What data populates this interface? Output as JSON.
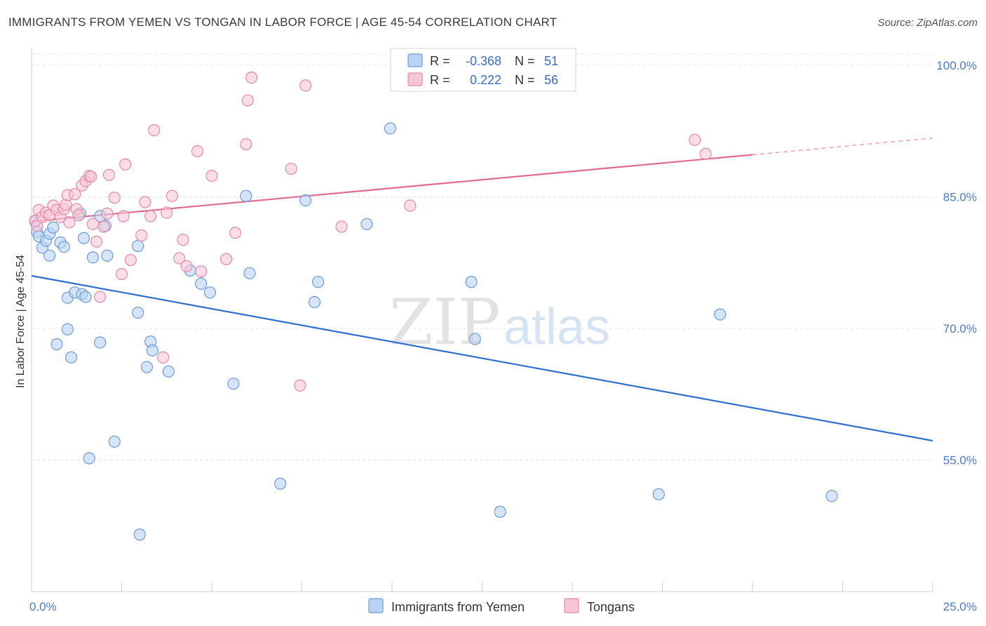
{
  "title": "IMMIGRANTS FROM YEMEN VS TONGAN IN LABOR FORCE | AGE 45-54 CORRELATION CHART",
  "source": "Source: ZipAtlas.com",
  "watermark": {
    "zip": "ZIP",
    "atlas": "atlas"
  },
  "colors": {
    "blue_fill": "#b9d3f2",
    "blue_stroke": "#6f9bd8",
    "blue_line": "#2f6fcf",
    "pink_fill": "#f7c6d6",
    "pink_stroke": "#e48aa8",
    "pink_line": "#e06a93",
    "grid": "#e3e3e3",
    "axis_text": "#4a7cc7"
  },
  "legend": {
    "rows": [
      {
        "r_label": "R =",
        "r_value": "-0.368",
        "n_label": "N =",
        "n_value": "51"
      },
      {
        "r_label": "R =",
        "r_value": "0.222",
        "n_label": "N =",
        "n_value": "56"
      }
    ]
  },
  "chart_data": {
    "type": "scatter",
    "ylabel": "In Labor Force | Age 45-54",
    "xlim": [
      0,
      25
    ],
    "ylim": [
      40,
      102
    ],
    "y_ticks": [
      {
        "value": 55,
        "label": "55.0%"
      },
      {
        "value": 70,
        "label": "70.0%"
      },
      {
        "value": 85,
        "label": "85.0%"
      },
      {
        "value": 100,
        "label": "100.0%"
      }
    ],
    "x_tick_labels": [
      {
        "value": 0,
        "label": "0.0%"
      },
      {
        "value": 25,
        "label": "25.0%"
      }
    ],
    "series": [
      {
        "name": "Immigrants from Yemen",
        "points": [
          [
            0.15,
            81
          ],
          [
            0.2,
            80.5
          ],
          [
            0.3,
            79.2
          ],
          [
            0.4,
            80
          ],
          [
            0.5,
            78.3
          ],
          [
            0.5,
            80.8
          ],
          [
            0.6,
            81.5
          ],
          [
            0.8,
            79.8
          ],
          [
            0.9,
            79.3
          ],
          [
            1.0,
            69.9
          ],
          [
            1.0,
            73.5
          ],
          [
            0.7,
            68.2
          ],
          [
            1.1,
            66.7
          ],
          [
            1.2,
            74.1
          ],
          [
            1.35,
            83.1
          ],
          [
            1.4,
            73.9
          ],
          [
            1.45,
            80.3
          ],
          [
            1.5,
            73.6
          ],
          [
            1.6,
            55.2
          ],
          [
            1.7,
            78.1
          ],
          [
            1.9,
            68.4
          ],
          [
            1.9,
            82.8
          ],
          [
            2.05,
            81.7
          ],
          [
            2.1,
            78.3
          ],
          [
            2.3,
            57.1
          ],
          [
            2.95,
            71.8
          ],
          [
            2.95,
            79.4
          ],
          [
            3.0,
            46.5
          ],
          [
            3.2,
            65.6
          ],
          [
            3.3,
            68.5
          ],
          [
            3.35,
            67.5
          ],
          [
            3.8,
            65.1
          ],
          [
            4.4,
            76.6
          ],
          [
            4.7,
            75.1
          ],
          [
            4.95,
            74.1
          ],
          [
            5.6,
            63.7
          ],
          [
            5.95,
            85.1
          ],
          [
            6.05,
            76.3
          ],
          [
            6.9,
            52.3
          ],
          [
            7.6,
            84.6
          ],
          [
            7.85,
            73
          ],
          [
            7.95,
            75.3
          ],
          [
            9.3,
            81.9
          ],
          [
            9.95,
            92.8
          ],
          [
            12.2,
            75.3
          ],
          [
            12.3,
            68.8
          ],
          [
            13.0,
            49.1
          ],
          [
            17.4,
            51.1
          ],
          [
            19.1,
            71.6
          ],
          [
            22.2,
            50.9
          ],
          [
            0.1,
            82.2
          ]
        ],
        "trend": {
          "x": [
            0,
            25
          ],
          "y": [
            76.0,
            57.2
          ]
        }
      },
      {
        "name": "Tongans",
        "points": [
          [
            0.1,
            82.3
          ],
          [
            0.15,
            81.7
          ],
          [
            0.2,
            83.5
          ],
          [
            0.3,
            82.7
          ],
          [
            0.4,
            83.2
          ],
          [
            0.5,
            82.9
          ],
          [
            0.6,
            84
          ],
          [
            0.7,
            83.5
          ],
          [
            0.8,
            82.7
          ],
          [
            0.9,
            83.6
          ],
          [
            0.95,
            84.1
          ],
          [
            1.0,
            85.2
          ],
          [
            1.05,
            82.1
          ],
          [
            1.2,
            85.3
          ],
          [
            1.25,
            83.6
          ],
          [
            1.3,
            82.9
          ],
          [
            1.4,
            86.3
          ],
          [
            1.5,
            86.8
          ],
          [
            1.6,
            87.4
          ],
          [
            1.65,
            87.3
          ],
          [
            1.7,
            81.9
          ],
          [
            1.8,
            79.9
          ],
          [
            1.9,
            73.6
          ],
          [
            2.0,
            81.6
          ],
          [
            2.1,
            83.1
          ],
          [
            2.15,
            87.5
          ],
          [
            2.3,
            84.9
          ],
          [
            2.5,
            76.2
          ],
          [
            2.55,
            82.8
          ],
          [
            2.6,
            88.7
          ],
          [
            2.75,
            77.8
          ],
          [
            3.05,
            80.6
          ],
          [
            3.15,
            84.4
          ],
          [
            3.3,
            82.8
          ],
          [
            3.4,
            92.6
          ],
          [
            3.65,
            66.7
          ],
          [
            3.75,
            83.2
          ],
          [
            3.9,
            85.1
          ],
          [
            4.1,
            78
          ],
          [
            4.2,
            80.1
          ],
          [
            4.3,
            77.1
          ],
          [
            4.6,
            90.2
          ],
          [
            4.7,
            76.5
          ],
          [
            5.0,
            87.4
          ],
          [
            5.4,
            77.9
          ],
          [
            5.65,
            80.9
          ],
          [
            5.95,
            91
          ],
          [
            6.0,
            96
          ],
          [
            6.1,
            98.6
          ],
          [
            7.2,
            88.2
          ],
          [
            7.45,
            63.5
          ],
          [
            7.6,
            97.7
          ],
          [
            8.6,
            81.6
          ],
          [
            10.5,
            84
          ],
          [
            18.4,
            91.5
          ],
          [
            18.7,
            89.9
          ]
        ],
        "trend": {
          "x": [
            0,
            20
          ],
          "y": [
            82.2,
            89.8
          ]
        },
        "trend_dashed": {
          "x": [
            20,
            25
          ],
          "y": [
            89.8,
            91.7
          ]
        }
      }
    ]
  },
  "bottom_legend": [
    "Immigrants from Yemen",
    "Tongans"
  ]
}
